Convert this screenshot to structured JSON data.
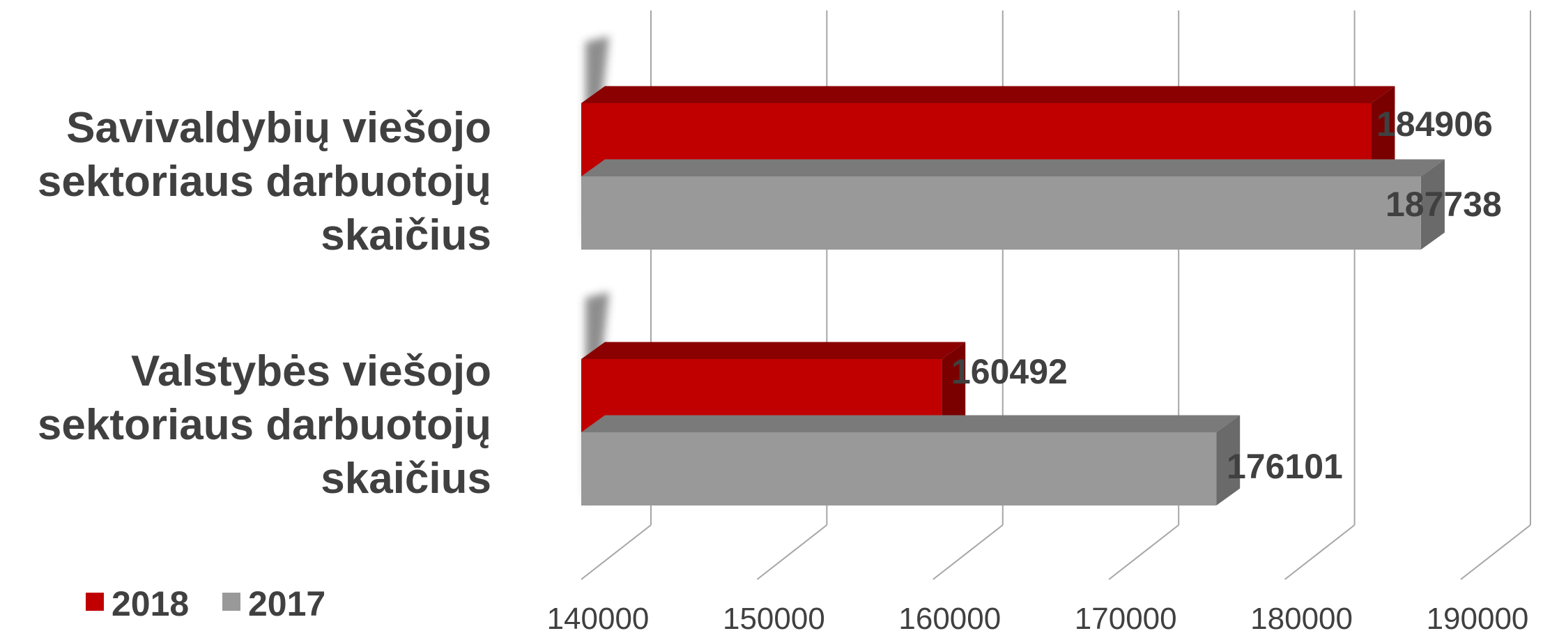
{
  "chart_data": {
    "type": "bar",
    "orientation": "horizontal",
    "three_d": true,
    "categories": [
      "Savivaldybių viešojo sektoriaus darbuotojų skaičius",
      "Valstybės viešojo sektoriaus darbuotojų skaičius"
    ],
    "category_lines": [
      [
        "Savivaldybių viešojo",
        "sektoriaus darbuotojų",
        "skaičius"
      ],
      [
        "Valstybės viešojo",
        "sektoriaus darbuotojų",
        "skaičius"
      ]
    ],
    "series": [
      {
        "name": "2018",
        "values": [
          184906,
          160492
        ],
        "color": "#c00000"
      },
      {
        "name": "2017",
        "values": [
          187738,
          176101
        ],
        "color": "#999999"
      }
    ],
    "xlim": [
      140000,
      190000
    ],
    "xticks": [
      "140000",
      "150000",
      "160000",
      "170000",
      "180000",
      "190000"
    ],
    "grid": true,
    "legend": "bottom-left"
  }
}
